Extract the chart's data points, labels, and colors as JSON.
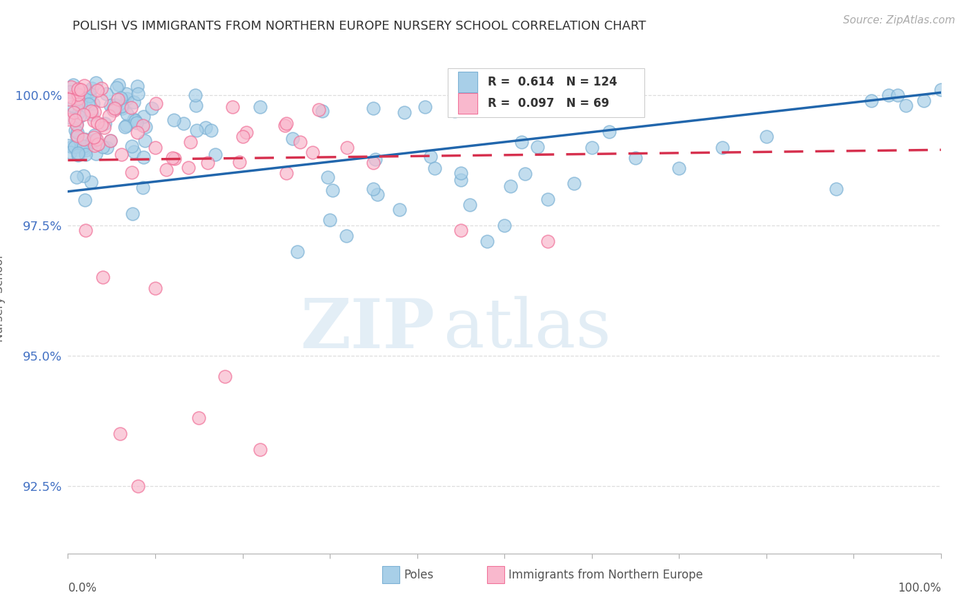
{
  "title": "POLISH VS IMMIGRANTS FROM NORTHERN EUROPE NURSERY SCHOOL CORRELATION CHART",
  "source": "Source: ZipAtlas.com",
  "ylabel": "Nursery School",
  "yticks": [
    92.5,
    95.0,
    97.5,
    100.0
  ],
  "ytick_labels": [
    "92.5%",
    "95.0%",
    "97.5%",
    "100.0%"
  ],
  "xlim": [
    0.0,
    1.0
  ],
  "ylim": [
    91.2,
    101.0
  ],
  "poles_color": "#a8cfe8",
  "poles_edge_color": "#7ab0d4",
  "immigrants_color": "#f9b8cd",
  "immigrants_edge_color": "#f07098",
  "poles_line_color": "#2166ac",
  "immigrants_line_color": "#d6304e",
  "poles_R": 0.614,
  "poles_N": 124,
  "immigrants_R": 0.097,
  "immigrants_N": 69,
  "poles_trend": [
    98.15,
    100.05
  ],
  "imm_trend": [
    98.75,
    98.95
  ],
  "watermark_zip": "ZIP",
  "watermark_atlas": "atlas",
  "background_color": "#ffffff",
  "legend_entries": [
    "Poles",
    "Immigrants from Northern Europe"
  ],
  "grid_color": "#dddddd",
  "ytick_color": "#4472c4",
  "title_color": "#333333",
  "source_color": "#aaaaaa"
}
